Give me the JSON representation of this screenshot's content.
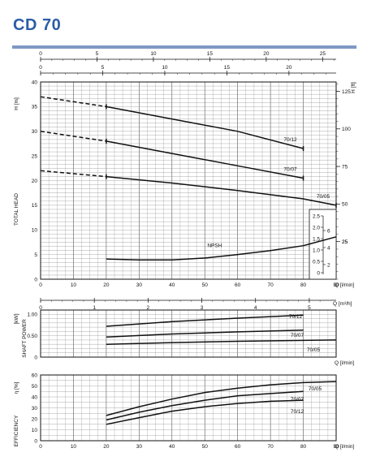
{
  "header": {
    "title": "CD 70",
    "accent_color": "#2b5da8",
    "rule_color": "#7f98c4"
  },
  "chart_data": [
    {
      "type": "line",
      "name": "head",
      "ylabel": "TOTAL HEAD",
      "y_unit_left": "H  [m]",
      "y_unit_right": "H  [ft]",
      "top_axis_left": {
        "label": "",
        "ticks": [
          "0",
          "5",
          "10",
          "15",
          "20",
          "25"
        ],
        "range": [
          0,
          25
        ]
      },
      "top_axis_right": {
        "label": "",
        "ticks": [
          "0",
          "5",
          "10",
          "15",
          "20"
        ],
        "range": [
          0,
          20
        ]
      },
      "xlim": [
        0,
        90
      ],
      "ylim": [
        0,
        40
      ],
      "yticks": [
        "0",
        "5",
        "10",
        "15",
        "20",
        "25",
        "30",
        "35",
        "40"
      ],
      "yticks_ft": [
        "25",
        "50",
        "75",
        "100",
        "125"
      ],
      "series": [
        {
          "name": "70/12",
          "x": [
            0,
            20,
            40,
            60,
            80
          ],
          "y": [
            37,
            35,
            32.5,
            30,
            26.5
          ]
        },
        {
          "name": "70/07",
          "x": [
            0,
            20,
            40,
            60,
            80
          ],
          "y": [
            30,
            28,
            25.5,
            23,
            20.5
          ]
        },
        {
          "name": "70/05",
          "x": [
            0,
            20,
            40,
            60,
            80,
            90
          ],
          "y": [
            22,
            20.8,
            19.5,
            18,
            16.3,
            15
          ]
        }
      ],
      "npsh": {
        "name": "NPSH",
        "x": [
          20,
          30,
          40,
          50,
          60,
          70,
          80,
          90
        ],
        "y": [
          4.1,
          3.9,
          3.9,
          4.3,
          5.0,
          5.8,
          6.8,
          8.6
        ]
      },
      "npsh_inset": {
        "ticks_m": [
          "0",
          "0.5",
          "1.0",
          "1.5",
          "2.0",
          "2.5"
        ],
        "ticks_ft": [
          "2",
          "4",
          "6"
        ]
      }
    },
    {
      "type": "line",
      "name": "shaft-power",
      "ylabel": "SHAFT POWER",
      "y_unit": "[kW]",
      "x_axis_label": "Q [m³/h]",
      "x_ticks": [
        "0",
        "1",
        "2",
        "3",
        "4",
        "5"
      ],
      "x_range": [
        0,
        5.5
      ],
      "xlim": [
        0,
        90
      ],
      "ylim": [
        0,
        1.1
      ],
      "yticks": [
        "0",
        "0.50",
        "1.00"
      ],
      "series": [
        {
          "name": "70/12",
          "x": [
            20,
            40,
            60,
            80
          ],
          "y": [
            0.72,
            0.83,
            0.91,
            0.98
          ]
        },
        {
          "name": "70/07",
          "x": [
            20,
            40,
            60,
            80
          ],
          "y": [
            0.47,
            0.54,
            0.59,
            0.63
          ]
        },
        {
          "name": "70/05",
          "x": [
            20,
            40,
            60,
            80,
            90
          ],
          "y": [
            0.3,
            0.34,
            0.37,
            0.39,
            0.4
          ]
        }
      ]
    },
    {
      "type": "line",
      "name": "efficiency",
      "ylabel": "EFFICIENCY",
      "y_unit": "η [%]",
      "x_axis_label": "Q [l/min]",
      "x_ticks": [
        "0",
        "10",
        "20",
        "30",
        "40",
        "50",
        "60",
        "70",
        "80",
        "90"
      ],
      "xlim": [
        0,
        90
      ],
      "ylim": [
        0,
        60
      ],
      "yticks": [
        "0",
        "10",
        "20",
        "30",
        "40",
        "50",
        "60"
      ],
      "series": [
        {
          "name": "70/05",
          "x": [
            20,
            30,
            40,
            50,
            60,
            70,
            80,
            90
          ],
          "y": [
            23,
            31,
            38,
            44,
            48,
            51,
            53,
            54
          ]
        },
        {
          "name": "70/07",
          "x": [
            20,
            30,
            40,
            50,
            60,
            70,
            80
          ],
          "y": [
            19,
            26,
            32,
            37,
            41,
            43,
            45
          ]
        },
        {
          "name": "70/12",
          "x": [
            20,
            30,
            40,
            50,
            60,
            70,
            80
          ],
          "y": [
            15,
            21,
            27,
            31,
            34,
            36,
            37
          ]
        }
      ]
    }
  ],
  "axis_labels": {
    "q_lmin": "Q [l/min]",
    "q_m3h": "Q [m³/h]"
  }
}
